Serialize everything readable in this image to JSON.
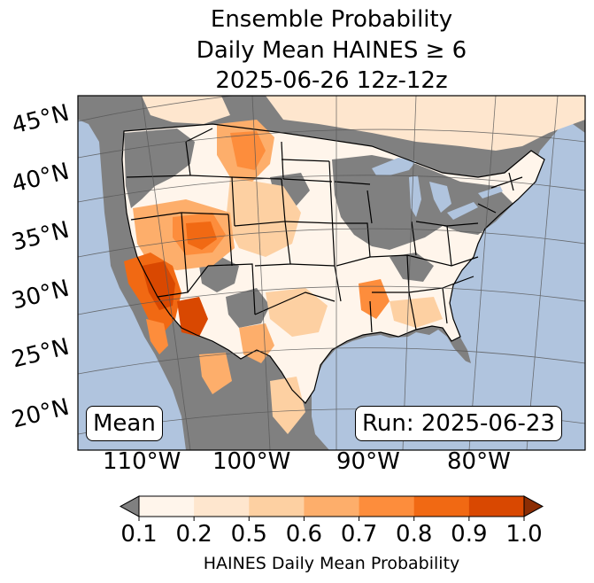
{
  "title": {
    "line1": "Ensemble Probability",
    "line2": "Daily Mean HAINES ≥ 6",
    "line3": "2025-06-26 12z-12z"
  },
  "map": {
    "lat_labels": [
      "45°N",
      "40°N",
      "35°N",
      "30°N",
      "25°N",
      "20°N"
    ],
    "lon_labels": [
      "110°W",
      "100°W",
      "90°W",
      "80°W"
    ],
    "mean_label": "Mean",
    "run_label": "Run: 2025-06-23",
    "colors": {
      "ocean": "#b0c4de",
      "no_data": "#808080",
      "land_low": "#fff5eb"
    }
  },
  "colorbar": {
    "ticks": [
      "0.1",
      "0.2",
      "0.5",
      "0.6",
      "0.7",
      "0.8",
      "0.9",
      "1.0"
    ],
    "label": "HAINES Daily Mean Probability",
    "colors": [
      "#fff5eb",
      "#fee6ce",
      "#fdd0a2",
      "#fdae6b",
      "#fd8d3c",
      "#f16913",
      "#d94801"
    ],
    "under_color": "#808080",
    "over_color": "#8c2d04"
  }
}
